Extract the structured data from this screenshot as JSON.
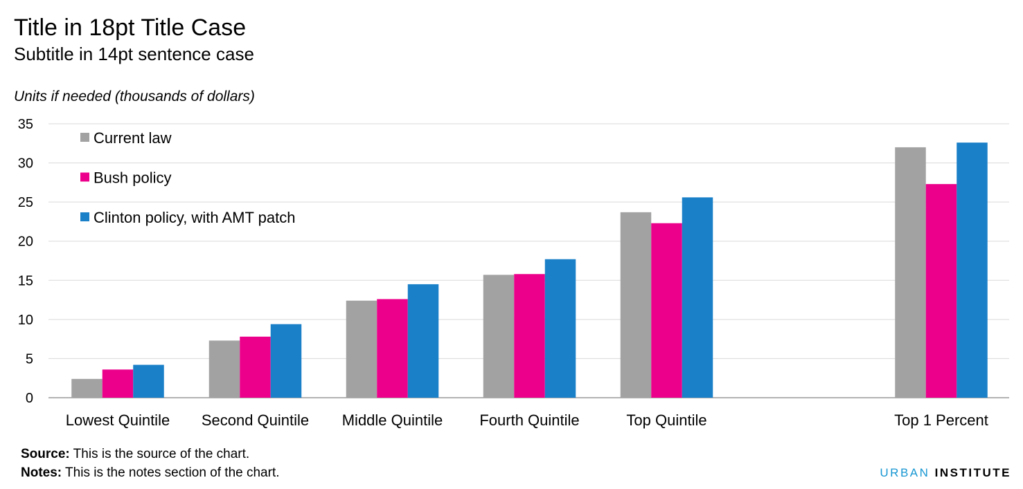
{
  "title": "Title in 18pt Title Case",
  "subtitle": "Subtitle in 14pt sentence case",
  "footer": {
    "source_label": "Source:",
    "source_text": " This is the source of the chart.",
    "notes_label": "Notes:",
    "notes_text": " This is the notes section of the chart."
  },
  "brand": {
    "part1": "URBAN",
    "part2": "INSTITUTE"
  },
  "chart_data": {
    "type": "bar",
    "ylabel": "Units if needed (thousands of dollars)",
    "xlabel": "",
    "ylim": [
      0,
      35
    ],
    "yticks": [
      0,
      5,
      10,
      15,
      20,
      25,
      30,
      35
    ],
    "grid": true,
    "legend_position": "top-left",
    "categories": [
      "Lowest Quintile",
      "Second Quintile",
      "Middle Quintile",
      "Fourth Quintile",
      "Top Quintile",
      "Top 1 Percent"
    ],
    "series": [
      {
        "name": "Current law",
        "color": "#a2a2a2",
        "values": [
          2.4,
          7.3,
          12.4,
          15.7,
          23.7,
          32.0
        ]
      },
      {
        "name": "Bush policy",
        "color": "#ec008b",
        "values": [
          3.6,
          7.8,
          12.6,
          15.8,
          22.3,
          27.3
        ]
      },
      {
        "name": "Clinton policy, with AMT patch",
        "color": "#1a80c8",
        "values": [
          4.2,
          9.4,
          14.5,
          17.7,
          25.6,
          32.6
        ]
      }
    ]
  },
  "colors": {
    "grid": "#d9d9d9",
    "axis": "#999999",
    "brand_blue": "#1696d2"
  }
}
